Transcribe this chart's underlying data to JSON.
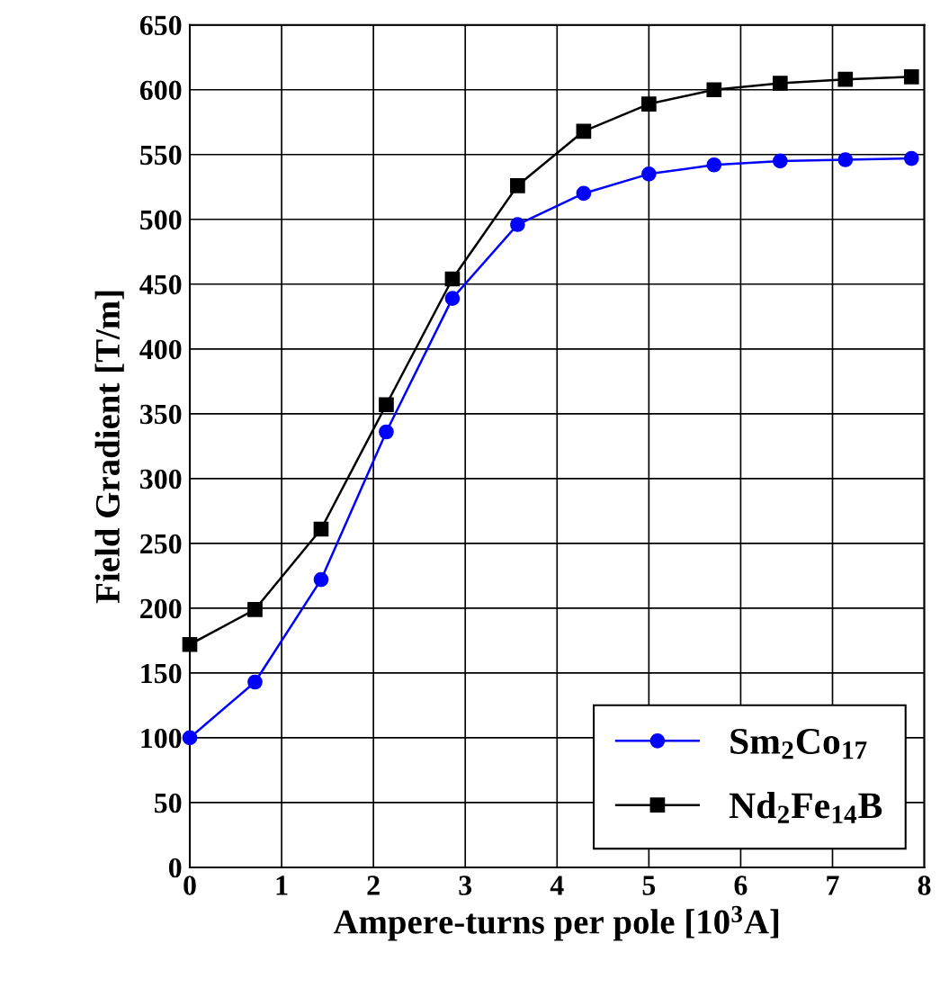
{
  "chart_data": {
    "type": "line",
    "xlabel": "Ampere-turns per pole [10$^{3}$A]",
    "ylabel": "Field Gradient [T/m]",
    "x": [
      0,
      0.71,
      1.43,
      2.14,
      2.86,
      3.57,
      4.29,
      5.0,
      5.71,
      6.43,
      7.14,
      7.86
    ],
    "series": [
      {
        "name": "Sm$_{2}$Co$_{17}$",
        "color": "#0000ff",
        "marker": "circle",
        "values": [
          100,
          143,
          222,
          336,
          439,
          496,
          520,
          535,
          542,
          545,
          546,
          547
        ]
      },
      {
        "name": "Nd$_{2}$Fe$_{14}$B",
        "color": "#000000",
        "marker": "square",
        "values": [
          172,
          199,
          261,
          357,
          454,
          526,
          568,
          589,
          600,
          605,
          608,
          610
        ]
      }
    ],
    "xlim": [
      0,
      8
    ],
    "xticks": [
      0,
      1,
      2,
      3,
      4,
      5,
      6,
      7,
      8
    ],
    "ylim": [
      0,
      650
    ],
    "yticks": [
      0,
      50,
      100,
      150,
      200,
      250,
      300,
      350,
      400,
      450,
      500,
      550,
      600,
      650
    ],
    "grid": true,
    "legend": "bottom right",
    "line_style": "solid"
  }
}
